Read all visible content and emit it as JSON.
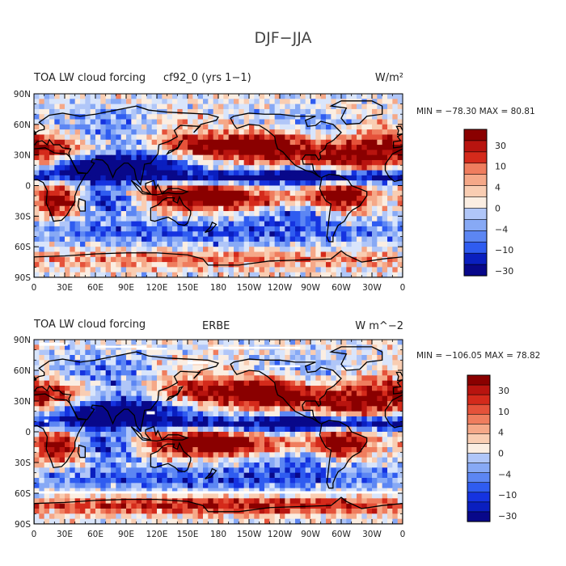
{
  "main_title": "DJF−JJA",
  "colors": {
    "levels": [
      "#08088a",
      "#0a1fbf",
      "#1533e0",
      "#2f5cf0",
      "#5c86f3",
      "#87a9f5",
      "#b0c6f8",
      "#d9e5fb",
      "#fbeee2",
      "#f9cdb2",
      "#f5a888",
      "#ef7d5e",
      "#e5523a",
      "#d42a1b",
      "#b8140f",
      "#8a0000"
    ],
    "land": "#000000",
    "missing": "#ffffff"
  },
  "chart_data": [
    {
      "type": "heatmap",
      "title_left": "TOA LW cloud forcing",
      "title_center": "cf92_0 (yrs 1−1)",
      "title_right": "W/m²",
      "stats": "MIN = −78.30  MAX =  80.81",
      "min": -78.3,
      "max": 80.81,
      "x_ticks": [
        "0",
        "30E",
        "60E",
        "90E",
        "120E",
        "150E",
        "180",
        "150W",
        "120W",
        "90W",
        "60W",
        "30W",
        "0"
      ],
      "y_ticks": [
        "90N",
        "60N",
        "30N",
        "0",
        "30S",
        "60S",
        "90S"
      ],
      "colorbar_labels": [
        "30",
        "10",
        "4",
        "0",
        "−4",
        "−10",
        "−30"
      ]
    },
    {
      "type": "heatmap",
      "title_left": "TOA LW cloud forcing",
      "title_center": "ERBE",
      "title_right": "W m^−2",
      "stats": "MIN = −106.05  MAX =  78.82",
      "min": -106.05,
      "max": 78.82,
      "x_ticks": [
        "0",
        "30E",
        "60E",
        "90E",
        "120E",
        "150E",
        "180",
        "150W",
        "120W",
        "90W",
        "60W",
        "30W",
        "0"
      ],
      "y_ticks": [
        "90N",
        "60N",
        "30N",
        "0",
        "30S",
        "60S",
        "90S"
      ],
      "colorbar_labels": [
        "30",
        "10",
        "4",
        "0",
        "−4",
        "−10",
        "−30"
      ]
    }
  ]
}
